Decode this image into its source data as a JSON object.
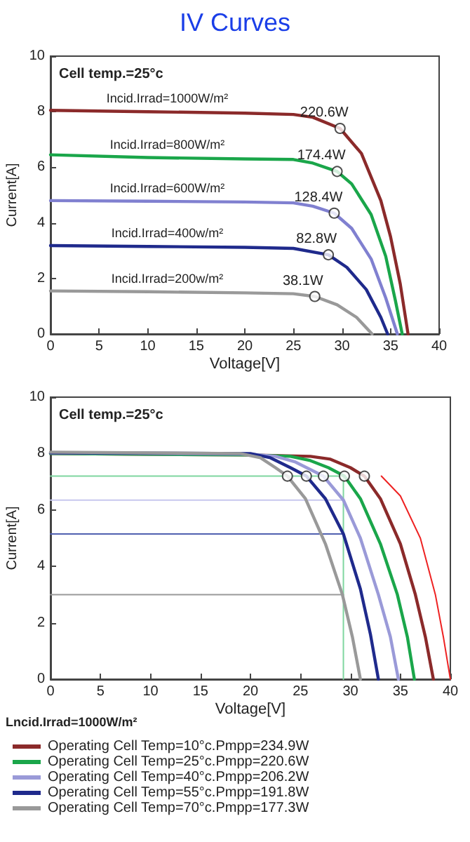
{
  "chart_data": [
    {
      "type": "line",
      "title": "IV Curves",
      "xlabel": "Voltage[V]",
      "ylabel": "Current[A]",
      "xlim": [
        0,
        40
      ],
      "xticks": [
        0,
        5,
        10,
        15,
        20,
        25,
        30,
        35,
        40
      ],
      "ylim": [
        0,
        10
      ],
      "yticks": [
        0,
        2,
        4,
        6,
        8,
        10
      ],
      "grid": false,
      "legend": false,
      "annotations": [
        "Cell temp.=25°c",
        {
          "text": "220.6W",
          "x": 29.8,
          "y": 7.4
        },
        {
          "text": "174.4W",
          "x": 29.5,
          "y": 5.85
        },
        {
          "text": "128.4W",
          "x": 29.2,
          "y": 4.35
        },
        {
          "text": "82.8W",
          "x": 28.6,
          "y": 2.85
        },
        {
          "text": "38.1W",
          "x": 27.2,
          "y": 1.35
        }
      ],
      "series": [
        {
          "name": "Incid.Irrad=1000W/m²",
          "color": "#8b2a2a",
          "x": [
            0,
            10,
            20,
            25,
            27,
            29.8,
            32,
            34,
            35,
            36,
            36.8
          ],
          "values": [
            8.05,
            8.0,
            7.95,
            7.9,
            7.8,
            7.4,
            6.5,
            4.8,
            3.5,
            1.8,
            0
          ]
        },
        {
          "name": "Incid.Irrad=800W/m²",
          "color": "#1aa64a",
          "x": [
            0,
            10,
            20,
            25,
            27,
            29.5,
            31,
            33,
            34.5,
            35.5,
            36.2
          ],
          "values": [
            6.45,
            6.35,
            6.3,
            6.28,
            6.15,
            5.85,
            5.4,
            4.3,
            2.8,
            1.2,
            0
          ]
        },
        {
          "name": "Incid.Irrad=600W/m²",
          "color": "#8080d0",
          "x": [
            0,
            10,
            20,
            25,
            27,
            29.2,
            31,
            33,
            34.5,
            35.7
          ],
          "values": [
            4.8,
            4.78,
            4.75,
            4.72,
            4.6,
            4.35,
            3.8,
            2.7,
            1.3,
            0
          ]
        },
        {
          "name": "Incid.Irrad=400w/m²",
          "color": "#1f2a8c",
          "x": [
            0,
            10,
            20,
            25,
            28.6,
            30.5,
            32.5,
            34,
            34.7
          ],
          "values": [
            3.18,
            3.15,
            3.12,
            3.08,
            2.85,
            2.4,
            1.6,
            0.6,
            0
          ]
        },
        {
          "name": "Incid.Irrad=200w/m²",
          "color": "#999999",
          "x": [
            0,
            10,
            20,
            25,
            27.2,
            29.5,
            31.5,
            33.1
          ],
          "values": [
            1.55,
            1.52,
            1.48,
            1.45,
            1.35,
            1.05,
            0.6,
            0
          ]
        },
        {
          "type": "scatter",
          "marker": "circle",
          "color": "#ffffff",
          "x": [
            29.8,
            29.5,
            29.2,
            28.6,
            27.2
          ],
          "values": [
            7.4,
            5.85,
            4.35,
            2.85,
            1.35
          ]
        }
      ]
    },
    {
      "type": "line",
      "xlabel": "Voltage[V]",
      "ylabel": "Current[A]",
      "xlim": [
        0,
        40
      ],
      "xticks": [
        0,
        5,
        10,
        15,
        20,
        25,
        30,
        35,
        40
      ],
      "ylim": [
        0,
        10
      ],
      "yticks": [
        0,
        2,
        4,
        6,
        8,
        10
      ],
      "grid": false,
      "legend": "bottom",
      "legend_title": "Lncid.Irrad=1000W/m²",
      "annotations": [
        "Cell temp.=25°c"
      ],
      "series": [
        {
          "color": "#7fd6a0",
          "x": [
            0,
            29.3
          ],
          "values": [
            7.2,
            7.2
          ]
        },
        {
          "color": "#c8c8ee",
          "x": [
            0,
            29.3
          ],
          "values": [
            6.35,
            6.35
          ]
        },
        {
          "color": "#5060b0",
          "x": [
            0,
            29.3
          ],
          "values": [
            5.15,
            5.15
          ]
        },
        {
          "color": "#999999",
          "x": [
            0,
            29.3
          ],
          "values": [
            3.0,
            3.0
          ]
        },
        {
          "color": "#7fd6a0",
          "x": [
            29.3,
            29.3
          ],
          "values": [
            0,
            7.2
          ]
        },
        {
          "name": "Operating Cell Temp=10°c.Pmpp=234.9W",
          "color": "#8b2a2a",
          "x": [
            0,
            20,
            26,
            28,
            30,
            31.4,
            33,
            35,
            36.5,
            37.5,
            38.3
          ],
          "values": [
            8.0,
            7.95,
            7.9,
            7.8,
            7.5,
            7.2,
            6.4,
            4.8,
            3.0,
            1.5,
            0
          ]
        },
        {
          "name": "Operating Cell Temp=25°c.Pmpp=220.6W",
          "color": "#1aa64a",
          "x": [
            0,
            20,
            24,
            26,
            27.8,
            29.4,
            31,
            33,
            34.7,
            35.7,
            36.4
          ],
          "values": [
            8.0,
            7.95,
            7.9,
            7.75,
            7.5,
            7.2,
            6.4,
            4.8,
            3.0,
            1.5,
            0
          ]
        },
        {
          "name": "Operating Cell Temp=40°c.Pmpp=206.2W",
          "color": "#9a9ad8",
          "x": [
            0,
            20,
            22.5,
            24.5,
            27.3,
            29.3,
            31,
            32.8,
            34,
            34.8
          ],
          "values": [
            8.02,
            7.98,
            7.9,
            7.7,
            7.2,
            6.35,
            5.0,
            3.0,
            1.5,
            0
          ]
        },
        {
          "name": "Operating Cell Temp=55°c.Pmpp=191.8W",
          "color": "#1f2a8c",
          "x": [
            0,
            20,
            22,
            24,
            25.6,
            27.5,
            29.3,
            31,
            32,
            32.8
          ],
          "values": [
            8.03,
            8.0,
            7.85,
            7.5,
            7.2,
            6.4,
            5.15,
            3.2,
            1.6,
            0
          ]
        },
        {
          "name": "Operating Cell Temp=70°c.Pmpp=177.3W",
          "color": "#999999",
          "x": [
            0,
            19,
            21,
            22.5,
            23.7,
            25.5,
            27.5,
            29.2,
            30.2,
            31
          ],
          "values": [
            8.05,
            8.0,
            7.85,
            7.5,
            7.2,
            6.4,
            4.8,
            3.0,
            1.5,
            0
          ]
        },
        {
          "color": "#ee2222",
          "x": [
            33.1,
            35,
            37,
            38.5,
            39.3,
            40
          ],
          "values": [
            7.2,
            6.5,
            5.0,
            3.0,
            1.5,
            0
          ]
        },
        {
          "type": "scatter",
          "marker": "circle",
          "color": "#ffffff",
          "x": [
            23.7,
            25.6,
            27.3,
            29.4,
            31.4
          ],
          "values": [
            7.2,
            7.2,
            7.2,
            7.2,
            7.2
          ]
        }
      ]
    }
  ]
}
